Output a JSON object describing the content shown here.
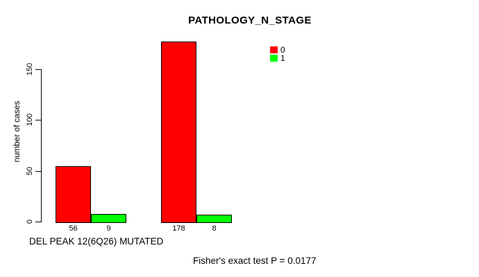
{
  "chart_data": {
    "type": "bar",
    "title": "PATHOLOGY_N_STAGE",
    "ylabel": "number of cases",
    "xlabel": "DEL PEAK 12(6Q26) MUTATED",
    "annotation": "Fisher's exact test P = 0.0177",
    "ylim": [
      0,
      178
    ],
    "yticks": [
      0,
      50,
      100,
      150
    ],
    "grid": "off",
    "legend_position": "top-right",
    "legend": [
      {
        "label": "0",
        "color": "#FF0000"
      },
      {
        "label": "1",
        "color": "#00FF00"
      }
    ],
    "groups": [
      {
        "bars": [
          {
            "series": "0",
            "value": 56,
            "color": "#FF0000"
          },
          {
            "series": "1",
            "value": 9,
            "color": "#00FF00"
          }
        ]
      },
      {
        "bars": [
          {
            "series": "0",
            "value": 178,
            "color": "#FF0000"
          },
          {
            "series": "1",
            "value": 8,
            "color": "#00FF00"
          }
        ]
      }
    ],
    "colors": {
      "background": "#FFFFFF",
      "axis": "#000000",
      "text": "#000000"
    }
  }
}
